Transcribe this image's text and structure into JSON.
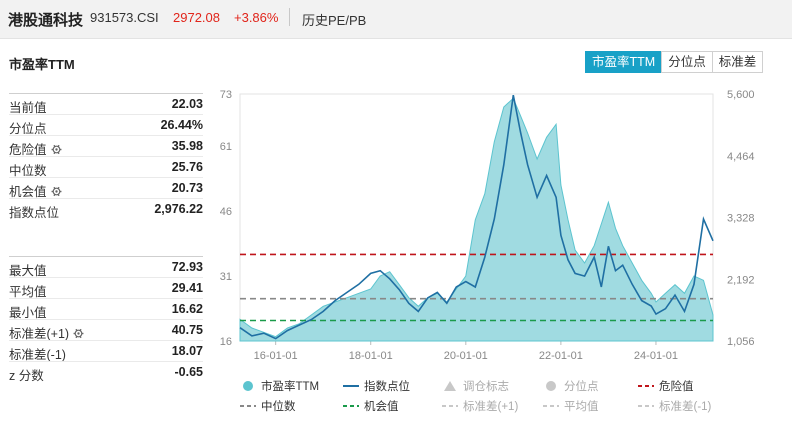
{
  "header": {
    "name": "港股通科技",
    "code": "931573.CSI",
    "price": "2972.08",
    "change": "+3.86%",
    "history_tab": "历史PE/PB"
  },
  "panel": {
    "title": "市盈率TTM",
    "tabs": [
      {
        "label": "市盈率TTM",
        "active": true
      },
      {
        "label": "分位点",
        "active": false
      },
      {
        "label": "标准差",
        "active": false
      }
    ]
  },
  "stats_top": [
    {
      "label": "当前值",
      "value": "22.03",
      "gear": false
    },
    {
      "label": "分位点",
      "value": "26.44%",
      "gear": false
    },
    {
      "label": "危险值",
      "value": "35.98",
      "gear": true
    },
    {
      "label": "中位数",
      "value": "25.76",
      "gear": false
    },
    {
      "label": "机会值",
      "value": "20.73",
      "gear": true
    },
    {
      "label": "指数点位",
      "value": "2,976.22",
      "gear": false
    }
  ],
  "stats_bottom": [
    {
      "label": "最大值",
      "value": "72.93",
      "gear": false
    },
    {
      "label": "平均值",
      "value": "29.41",
      "gear": false
    },
    {
      "label": "最小值",
      "value": "16.62",
      "gear": false
    },
    {
      "label": "标准差(+1)",
      "value": "40.75",
      "gear": true
    },
    {
      "label": "标准差(-1)",
      "value": "18.07",
      "gear": false
    },
    {
      "label": "z 分数",
      "value": "-0.65",
      "gear": false
    }
  ],
  "legend": [
    {
      "label": "市盈率TTM",
      "icon": "filled-circle",
      "color": "#5cc4cf",
      "dim": false
    },
    {
      "label": "指数点位",
      "icon": "line",
      "color": "#1f6fa3",
      "dim": false
    },
    {
      "label": "调仓标志",
      "icon": "triangle",
      "color": "#c8c8c8",
      "dim": true
    },
    {
      "label": "分位点",
      "icon": "circle",
      "color": "#c8c8c8",
      "dim": true
    },
    {
      "label": "危险值",
      "icon": "dashed-line",
      "color": "#c0151b",
      "dim": false
    },
    {
      "label": "中位数",
      "icon": "dashed-line",
      "color": "#888888",
      "dim": false
    },
    {
      "label": "机会值",
      "icon": "dashed-line",
      "color": "#1a9a4a",
      "dim": false
    },
    {
      "label": "标准差(+1)",
      "icon": "dashed-line",
      "color": "#c8c8c8",
      "dim": true
    },
    {
      "label": "平均值",
      "icon": "dashed-line",
      "color": "#c8c8c8",
      "dim": true
    },
    {
      "label": "标准差(-1)",
      "icon": "dashed-line",
      "color": "#c8c8c8",
      "dim": true
    }
  ],
  "chart_data": {
    "type": "area",
    "x_ticks": [
      "16-01-01",
      "18-01-01",
      "20-01-01",
      "22-01-01",
      "24-01-01"
    ],
    "x_tick_years": [
      2016,
      2018,
      2020,
      2022,
      2024
    ],
    "x_range": [
      2015.25,
      2025.2
    ],
    "left_axis": {
      "ticks": [
        "73",
        "61",
        "46",
        "31",
        "16"
      ],
      "tick_values": [
        73,
        61,
        46,
        31,
        16
      ],
      "range": [
        16,
        73
      ]
    },
    "right_axis": {
      "ticks": [
        "5,600",
        "4,464",
        "3,328",
        "2,192",
        "1,056"
      ],
      "tick_values": [
        5600,
        4464,
        3328,
        2192,
        1056
      ],
      "range": [
        1056,
        5600
      ]
    },
    "reference_lines": [
      {
        "name": "危险值",
        "value": 35.98,
        "color": "#c0151b"
      },
      {
        "name": "中位数",
        "value": 25.76,
        "color": "#888888"
      },
      {
        "name": "机会值",
        "value": 20.73,
        "color": "#1a9a4a"
      }
    ],
    "series": [
      {
        "name": "市盈率TTM",
        "axis": "left",
        "color": "#5cc4cf",
        "x": [
          2015.25,
          2015.5,
          2015.75,
          2016.0,
          2016.25,
          2016.5,
          2016.75,
          2017.0,
          2017.25,
          2017.5,
          2017.75,
          2018.0,
          2018.2,
          2018.4,
          2018.6,
          2018.8,
          2019.0,
          2019.2,
          2019.4,
          2019.6,
          2019.8,
          2020.0,
          2020.2,
          2020.4,
          2020.6,
          2020.8,
          2021.0,
          2021.15,
          2021.3,
          2021.5,
          2021.7,
          2021.9,
          2022.0,
          2022.15,
          2022.3,
          2022.5,
          2022.7,
          2022.85,
          2023.0,
          2023.15,
          2023.3,
          2023.5,
          2023.7,
          2023.9,
          2024.0,
          2024.2,
          2024.4,
          2024.6,
          2024.8,
          2025.0,
          2025.2
        ],
        "y": [
          21,
          19,
          18,
          17,
          19,
          20,
          22,
          24,
          25,
          26,
          27,
          28,
          31,
          32,
          29,
          26,
          24,
          26,
          27,
          25,
          28,
          31,
          44,
          50,
          62,
          70,
          72,
          68,
          64,
          58,
          63,
          66,
          52,
          44,
          37,
          34,
          38,
          43,
          48,
          42,
          38,
          34,
          30,
          27,
          25,
          27,
          29,
          27,
          31,
          30,
          22
        ]
      },
      {
        "name": "指数点位",
        "axis": "right",
        "color": "#1f6fa3",
        "x": [
          2015.25,
          2015.5,
          2015.75,
          2016.0,
          2016.25,
          2016.5,
          2016.75,
          2017.0,
          2017.25,
          2017.5,
          2017.75,
          2018.0,
          2018.2,
          2018.4,
          2018.6,
          2018.8,
          2019.0,
          2019.2,
          2019.4,
          2019.6,
          2019.8,
          2020.0,
          2020.2,
          2020.4,
          2020.6,
          2020.8,
          2021.0,
          2021.15,
          2021.3,
          2021.5,
          2021.7,
          2021.9,
          2022.0,
          2022.15,
          2022.3,
          2022.5,
          2022.7,
          2022.85,
          2023.0,
          2023.15,
          2023.3,
          2023.5,
          2023.7,
          2023.9,
          2024.0,
          2024.2,
          2024.4,
          2024.6,
          2024.8,
          2025.0,
          2025.2
        ],
        "y": [
          1300,
          1150,
          1200,
          1100,
          1250,
          1350,
          1450,
          1600,
          1800,
          1950,
          2100,
          2300,
          2350,
          2200,
          2000,
          1750,
          1600,
          1850,
          1950,
          1750,
          2050,
          2150,
          2050,
          2600,
          3300,
          4300,
          5580,
          4900,
          4300,
          3700,
          4100,
          3700,
          3000,
          2550,
          2300,
          2250,
          2600,
          2050,
          2800,
          2350,
          2450,
          2100,
          1800,
          1700,
          1550,
          1650,
          1900,
          1600,
          2100,
          3300,
          2900
        ]
      }
    ]
  }
}
